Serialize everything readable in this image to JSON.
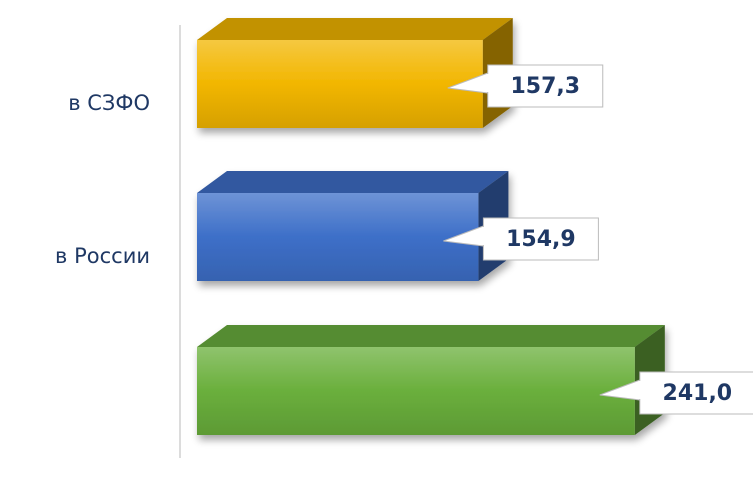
{
  "chart_data": {
    "type": "bar3d-horizontal",
    "categories": [
      "в СЗФО",
      "в России",
      null
    ],
    "values": [
      157.3,
      154.9,
      241.0
    ],
    "value_labels": [
      "157,3",
      "154,9",
      "241,0"
    ],
    "colors": [
      "#f2b600",
      "#3d6fc8",
      "#6aaf3c"
    ],
    "xlim": [
      0,
      300
    ]
  }
}
